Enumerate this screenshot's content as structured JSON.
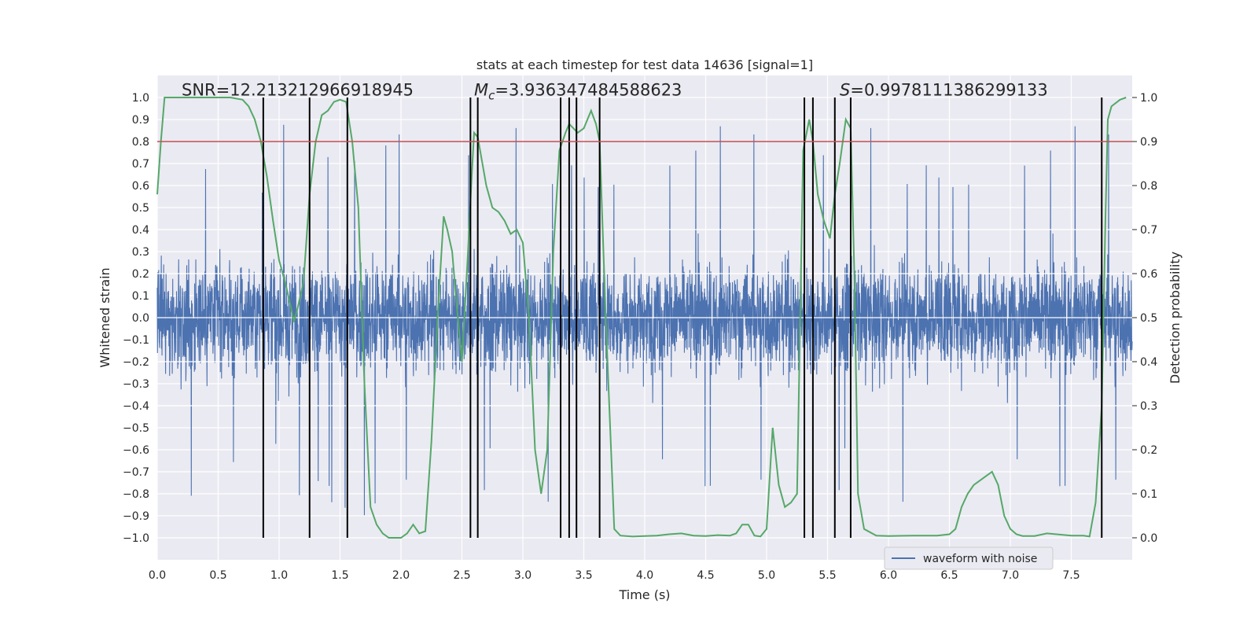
{
  "chart_data": {
    "type": "line",
    "title": "stats at each timestep for test data 14636 [signal=1]",
    "xlabel": "Time (s)",
    "ylabel_left": "Whitened strain",
    "ylabel_right": "Detection probability",
    "xlim": [
      0,
      8
    ],
    "ylim_left": [
      -1.1,
      1.1
    ],
    "ylim_right": [
      -0.05,
      1.05
    ],
    "x_ticks": [
      0.0,
      0.5,
      1.0,
      1.5,
      2.0,
      2.5,
      3.0,
      3.5,
      4.0,
      4.5,
      5.0,
      5.5,
      6.0,
      6.5,
      7.0,
      7.5
    ],
    "x_tick_labels": [
      "0.0",
      "0.5",
      "1.0",
      "1.5",
      "2.0",
      "2.5",
      "3.0",
      "3.5",
      "4.0",
      "4.5",
      "5.0",
      "5.5",
      "6.0",
      "6.5",
      "7.0",
      "7.5"
    ],
    "y_left_ticks": [
      1.0,
      0.9,
      0.8,
      0.7,
      0.6,
      0.5,
      0.4,
      0.3,
      0.2,
      0.1,
      0.0,
      -0.1,
      -0.2,
      -0.3,
      -0.4,
      -0.5,
      -0.6,
      -0.7,
      -0.8,
      -0.9,
      -1.0
    ],
    "y_left_tick_labels": [
      "1.0",
      "0.9",
      "0.8",
      "0.7",
      "0.6",
      "0.5",
      "0.4",
      "0.3",
      "0.2",
      "0.1",
      "0.0",
      "−0.1",
      "−0.2",
      "−0.3",
      "−0.4",
      "−0.5",
      "−0.6",
      "−0.7",
      "−0.8",
      "−0.9",
      "−1.0"
    ],
    "y_right_ticks": [
      1.0,
      0.9,
      0.8,
      0.7,
      0.6,
      0.5,
      0.4,
      0.3,
      0.2,
      0.1,
      0.0
    ],
    "y_right_tick_labels": [
      "1.0",
      "0.9",
      "0.8",
      "0.7",
      "0.6",
      "0.5",
      "0.4",
      "0.3",
      "0.2",
      "0.1",
      "0.0"
    ],
    "annotations": [
      {
        "name": "snr",
        "text": "SNR=12.213212966918945",
        "x": 0.2,
        "y": 1.03
      },
      {
        "name": "mc",
        "text": "=3.936347484588623",
        "symbol": "M",
        "subscript": "c",
        "x": 2.6,
        "y": 1.03
      },
      {
        "name": "s",
        "text": "=0.9978111386299133",
        "symbol": "S",
        "x": 5.6,
        "y": 1.03
      }
    ],
    "threshold": {
      "value": 0.9,
      "axis": "right",
      "color": "#c44e52"
    },
    "event_markers": {
      "x": [
        0.87,
        1.25,
        1.56,
        2.57,
        2.63,
        3.31,
        3.38,
        3.44,
        3.63,
        5.31,
        5.38,
        5.56,
        5.69,
        7.75
      ],
      "y_range": [
        -1.0,
        1.0
      ],
      "color": "#000000"
    },
    "series": [
      {
        "name": "waveform with noise",
        "axis": "left",
        "color": "#4c72b0",
        "kind": "noise",
        "typical_amplitude": 0.4,
        "max_amplitude": 0.99,
        "n_samples": 4096
      },
      {
        "name": "detection probability",
        "axis": "right",
        "color": "#55a868",
        "x": [
          0.0,
          0.03,
          0.06,
          0.12,
          0.2,
          0.3,
          0.4,
          0.5,
          0.6,
          0.7,
          0.75,
          0.8,
          0.85,
          0.9,
          0.95,
          1.0,
          1.05,
          1.1,
          1.12,
          1.15,
          1.2,
          1.25,
          1.3,
          1.35,
          1.4,
          1.45,
          1.5,
          1.55,
          1.6,
          1.65,
          1.7,
          1.75,
          1.8,
          1.85,
          1.9,
          2.0,
          2.05,
          2.1,
          2.15,
          2.2,
          2.25,
          2.3,
          2.35,
          2.38,
          2.42,
          2.45,
          2.5,
          2.55,
          2.58,
          2.6,
          2.63,
          2.7,
          2.75,
          2.8,
          2.85,
          2.9,
          2.95,
          3.0,
          3.05,
          3.1,
          3.15,
          3.2,
          3.25,
          3.3,
          3.35,
          3.38,
          3.45,
          3.5,
          3.56,
          3.6,
          3.63,
          3.68,
          3.75,
          3.8,
          3.9,
          4.0,
          4.1,
          4.2,
          4.3,
          4.4,
          4.5,
          4.6,
          4.7,
          4.75,
          4.8,
          4.85,
          4.9,
          4.95,
          5.0,
          5.05,
          5.1,
          5.15,
          5.2,
          5.25,
          5.3,
          5.35,
          5.38,
          5.42,
          5.47,
          5.52,
          5.56,
          5.6,
          5.65,
          5.69,
          5.72,
          5.75,
          5.8,
          5.9,
          6.0,
          6.2,
          6.4,
          6.5,
          6.55,
          6.6,
          6.65,
          6.7,
          6.8,
          6.85,
          6.9,
          6.95,
          7.0,
          7.05,
          7.1,
          7.2,
          7.3,
          7.5,
          7.6,
          7.65,
          7.7,
          7.75,
          7.78,
          7.8,
          7.83,
          7.9,
          7.95
        ],
        "y": [
          0.78,
          0.9,
          1.0,
          1.0,
          1.0,
          1.0,
          1.0,
          1.0,
          1.0,
          0.995,
          0.98,
          0.95,
          0.9,
          0.82,
          0.72,
          0.63,
          0.58,
          0.52,
          0.49,
          0.52,
          0.58,
          0.78,
          0.9,
          0.96,
          0.97,
          0.99,
          0.995,
          0.99,
          0.9,
          0.75,
          0.35,
          0.07,
          0.03,
          0.01,
          0.0,
          0.0,
          0.01,
          0.03,
          0.01,
          0.015,
          0.22,
          0.5,
          0.73,
          0.7,
          0.65,
          0.55,
          0.4,
          0.65,
          0.82,
          0.92,
          0.91,
          0.8,
          0.75,
          0.74,
          0.72,
          0.69,
          0.7,
          0.67,
          0.5,
          0.2,
          0.1,
          0.2,
          0.65,
          0.88,
          0.92,
          0.94,
          0.92,
          0.93,
          0.97,
          0.94,
          0.9,
          0.5,
          0.02,
          0.005,
          0.003,
          0.004,
          0.005,
          0.008,
          0.01,
          0.005,
          0.004,
          0.006,
          0.005,
          0.01,
          0.03,
          0.03,
          0.005,
          0.003,
          0.02,
          0.25,
          0.12,
          0.07,
          0.08,
          0.1,
          0.88,
          0.95,
          0.9,
          0.78,
          0.72,
          0.68,
          0.78,
          0.85,
          0.95,
          0.93,
          0.6,
          0.1,
          0.02,
          0.005,
          0.004,
          0.005,
          0.005,
          0.008,
          0.02,
          0.07,
          0.1,
          0.12,
          0.14,
          0.15,
          0.12,
          0.05,
          0.02,
          0.008,
          0.004,
          0.004,
          0.01,
          0.005,
          0.005,
          0.003,
          0.08,
          0.3,
          0.72,
          0.95,
          0.98,
          0.995,
          1.0
        ]
      }
    ],
    "legend": {
      "entries": [
        "waveform with noise"
      ],
      "placement": "bottom-right"
    }
  }
}
